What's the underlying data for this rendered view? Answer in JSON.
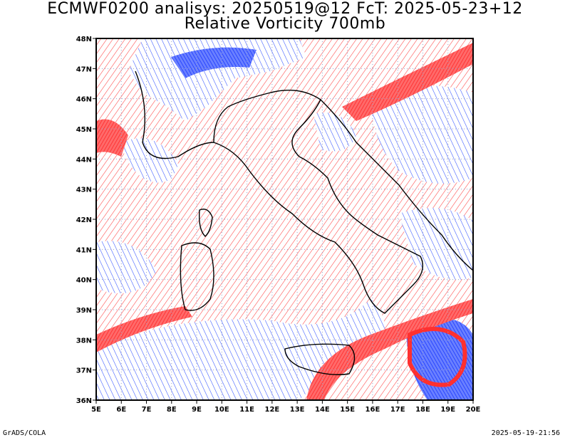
{
  "title_line1": "ECMWF0200 analisys: 20250519@12 FcT: 2025-05-23+12",
  "title_line2": "Relative Vorticity 700mb",
  "footer_left": "GrADS/COLA",
  "footer_right": "2025-05-19-21:56",
  "map": {
    "lon_range": [
      5,
      20
    ],
    "lat_range": [
      36,
      48
    ],
    "lon_ticks": [
      "5E",
      "6E",
      "7E",
      "8E",
      "9E",
      "10E",
      "11E",
      "12E",
      "13E",
      "14E",
      "15E",
      "16E",
      "17E",
      "18E",
      "19E",
      "20E"
    ],
    "lat_ticks": [
      "36N",
      "37N",
      "38N",
      "39N",
      "40N",
      "41N",
      "42N",
      "43N",
      "44N",
      "45N",
      "46N",
      "47N",
      "48N"
    ],
    "positive_color": "#ff3a3a",
    "negative_color": "#2b4dff",
    "coast_color": "#000000",
    "grid": true
  }
}
